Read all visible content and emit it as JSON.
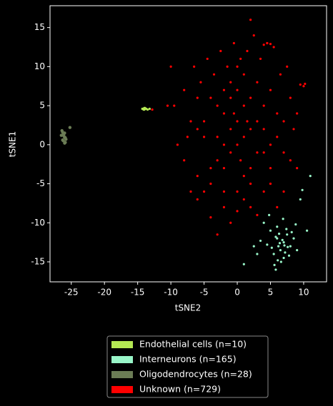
{
  "chart_data": {
    "type": "scatter",
    "xlabel": "tSNE2",
    "ylabel": "tSNE1",
    "xlim": [
      -28.2,
      13.45
    ],
    "ylim": [
      -17.56,
      17.8
    ],
    "xticks": [
      -25,
      -20,
      -15,
      -10,
      -5,
      0,
      5,
      10
    ],
    "yticks": [
      -15,
      -10,
      -5,
      0,
      5,
      10,
      15
    ],
    "legend": "below",
    "series": [
      {
        "name": "Endothelial cells (n=10)",
        "color": "#b4e853",
        "x": [
          -14.2,
          -14,
          -13.8,
          -14.1,
          -13.9,
          -13.5,
          -14.3,
          -13.7,
          -14,
          -13.2
        ],
        "y": [
          4.6,
          4.7,
          4.6,
          4.5,
          4.7,
          4.5,
          4.6,
          4.6,
          4.5,
          4.6
        ]
      },
      {
        "name": "Interneurons (n=165)",
        "color": "#98f5c8",
        "x": [
          5,
          6,
          7,
          8,
          6.5,
          5.5,
          7.5,
          6,
          7,
          8.5,
          4.5,
          6.2,
          6.8,
          7.2,
          5.8,
          6.4,
          7.8,
          5.2,
          8.2,
          6.6,
          7.4,
          4,
          3,
          9,
          10.5,
          9.5,
          2.5,
          1,
          5.8,
          6.9,
          7.1,
          6.3,
          5.6,
          8.8,
          4.8,
          3.5,
          7.6,
          6.1,
          9.8,
          11
        ],
        "y": [
          -11,
          -12,
          -12.5,
          -13,
          -13.5,
          -14,
          -11.5,
          -10.5,
          -14.5,
          -12,
          -12.8,
          -13,
          -12.2,
          -13.8,
          -11.8,
          -12.6,
          -14.2,
          -13.2,
          -11.2,
          -15,
          -10.8,
          -10,
          -14,
          -13.5,
          -11,
          -7,
          -13,
          -15.3,
          -16,
          -9.5,
          -12.9,
          -11.4,
          -15.4,
          -10.2,
          -9,
          -12.3,
          -13.1,
          -14.8,
          -5.8,
          -4
        ]
      },
      {
        "name": "Oligodendrocytes (n=28)",
        "color": "#6b7c55",
        "x": [
          -26.3,
          -26.1,
          -26.5,
          -26,
          -25.8,
          -26.2,
          -26.4,
          -25.9,
          -26.1,
          -25.2,
          -26,
          -26.3,
          -25.9,
          -26.2,
          -26
        ],
        "y": [
          1.6,
          1.4,
          1.2,
          0.9,
          0.7,
          0.5,
          1.8,
          0.3,
          1.1,
          2.2,
          1.5,
          0.6,
          0.9,
          1.3,
          0.2
        ]
      },
      {
        "name": "Unknown (n=729)",
        "color": "#ff0000",
        "x": [
          0,
          -1,
          -2,
          -3,
          -4,
          -5,
          -6,
          -7,
          -8,
          -9,
          1,
          2,
          3,
          4,
          5,
          6,
          7,
          8,
          9,
          10,
          0.5,
          -0.5,
          -1.5,
          -2.5,
          -3.5,
          -4.5,
          -5.5,
          -6.5,
          1.5,
          2.5,
          3.5,
          4.5,
          5.5,
          6.5,
          7.5,
          0,
          -2,
          -4,
          -6,
          2,
          4,
          6,
          -1,
          -3,
          -5,
          1,
          3,
          5,
          7,
          0,
          -1,
          1,
          -2,
          2,
          -3,
          3,
          -4,
          4,
          -5,
          5,
          -8,
          -9.5,
          8.5,
          10.2,
          -7,
          7,
          0,
          1,
          -1,
          2,
          -2,
          0.5,
          1.5,
          -0.5,
          4,
          4.5,
          5,
          -10,
          -10.5,
          -12.8,
          -7.5,
          -6,
          -4,
          -2,
          0,
          2,
          4,
          6,
          -3,
          -1,
          1,
          3,
          5,
          -2,
          0,
          2,
          8,
          9,
          9.5,
          -6
        ],
        "y": [
          0,
          2,
          4,
          -2,
          6,
          1,
          -4,
          3,
          7,
          0,
          5,
          -3,
          8,
          2,
          -5,
          4,
          -1,
          6,
          -3,
          7.5,
          11,
          13,
          10,
          12,
          9,
          11,
          8,
          10,
          12,
          14,
          11,
          13,
          12.5,
          9,
          10,
          -6,
          -8,
          -9.3,
          -7,
          -8,
          -6,
          -8,
          -10,
          -11.5,
          -6,
          -4,
          -9,
          -3,
          -6,
          3,
          -1,
          1,
          0,
          2,
          5,
          -1,
          -3,
          5,
          3,
          0,
          -2,
          5,
          2,
          7.8,
          -6,
          3,
          7,
          9,
          6,
          16,
          7,
          -2,
          3,
          4,
          12.8,
          13,
          12.9,
          10,
          5,
          4.5,
          1,
          6,
          -5,
          -3,
          -8.5,
          -5,
          -1,
          1,
          1,
          8,
          -7,
          3,
          7,
          -6,
          10,
          6,
          -2,
          4,
          7.7,
          2
        ]
      }
    ]
  }
}
